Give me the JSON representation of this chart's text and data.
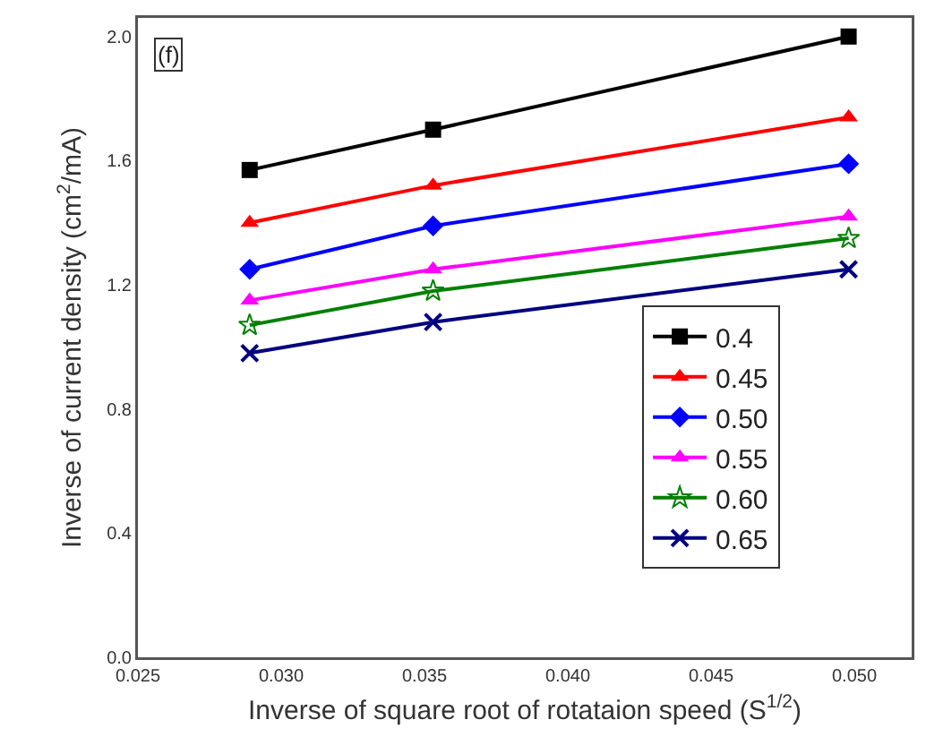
{
  "chart_data": {
    "type": "line",
    "xlabel": "Inverse of square root of rotataion speed (S$^{1/2}$)",
    "ylabel": "Inverse of current density (cm$^{2}$/mA)",
    "annotations": [
      "(f)"
    ],
    "x": [
      0.0289,
      0.0353,
      0.0498
    ],
    "series": [
      {
        "name": "0.4",
        "color": "#000000",
        "marker": "square",
        "values": [
          1.57,
          1.7,
          2.0
        ]
      },
      {
        "name": "0.45",
        "color": "#ff0000",
        "marker": "triangle",
        "values": [
          1.4,
          1.52,
          1.74
        ]
      },
      {
        "name": "0.50",
        "color": "#0000ff",
        "marker": "diamond",
        "values": [
          1.25,
          1.39,
          1.59
        ]
      },
      {
        "name": "0.55",
        "color": "#ff00ff",
        "marker": "triangle",
        "values": [
          1.15,
          1.25,
          1.42
        ]
      },
      {
        "name": "0.60",
        "color": "#008000",
        "marker": "star",
        "values": [
          1.07,
          1.18,
          1.35
        ]
      },
      {
        "name": "0.65",
        "color": "#000080",
        "marker": "cross",
        "values": [
          0.98,
          1.08,
          1.25
        ]
      }
    ],
    "xlim": [
      0.025,
      0.052
    ],
    "xticks": [
      {
        "value": 0.025,
        "label": "0.025"
      },
      {
        "value": 0.03,
        "label": "0.030"
      },
      {
        "value": 0.035,
        "label": "0.035"
      },
      {
        "value": 0.04,
        "label": "0.040"
      },
      {
        "value": 0.045,
        "label": "0.045"
      },
      {
        "value": 0.05,
        "label": "0.050"
      }
    ],
    "ylim": [
      0,
      2.06
    ],
    "yticks": [
      {
        "value": 0,
        "label": "0.0"
      },
      {
        "value": 0.4,
        "label": "0.4"
      },
      {
        "value": 0.8,
        "label": "0.8"
      },
      {
        "value": 1.2,
        "label": "1.2"
      },
      {
        "value": 1.6,
        "label": "1.6"
      },
      {
        "value": 2,
        "label": "2.0"
      }
    ],
    "grid": false,
    "legend": "right",
    "line_style": "solid"
  }
}
